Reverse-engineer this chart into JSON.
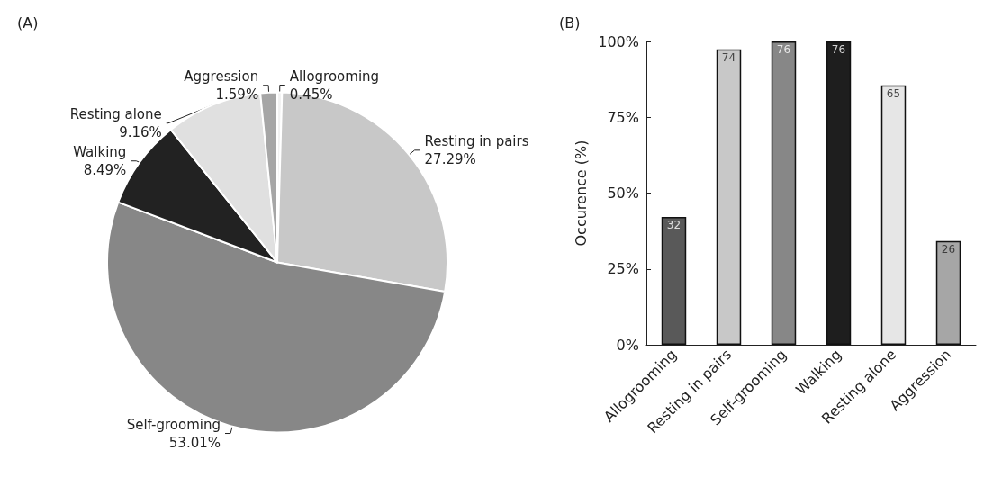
{
  "chart_data": [
    {
      "type": "pie",
      "title": "(A)",
      "categories": [
        "Allogrooming",
        "Resting in pairs",
        "Self-grooming",
        "Walking",
        "Resting alone",
        "Aggression"
      ],
      "values": [
        0.45,
        27.29,
        53.01,
        8.49,
        9.16,
        1.59
      ],
      "value_labels": [
        "0.45%",
        "27.29%",
        "53.01%",
        "8.49%",
        "9.16%",
        "1.59%"
      ],
      "colors": [
        "#f2f2f2",
        "#c8c8c8",
        "#878787",
        "#222222",
        "#e0e0e0",
        "#a6a6a6"
      ],
      "legend": false
    },
    {
      "type": "bar",
      "title": "(B)",
      "ylabel": "Occurence (%)",
      "categories": [
        "Allogrooming",
        "Resting in pairs",
        "Self-grooming",
        "Walking",
        "Resting alone",
        "Aggression"
      ],
      "values": [
        42.1,
        97.4,
        100,
        100,
        85.5,
        34.2
      ],
      "annotations": [
        {
          "text": "32",
          "x": "Allogrooming",
          "y": 42.1
        },
        {
          "text": "74",
          "x": "Resting in pairs",
          "y": 97.4
        },
        {
          "text": "76",
          "x": "Self-grooming",
          "y": 100
        },
        {
          "text": "76",
          "x": "Walking",
          "y": 100
        },
        {
          "text": "65",
          "x": "Resting alone",
          "y": 85.5
        },
        {
          "text": "26",
          "x": "Aggression",
          "y": 34.2
        }
      ],
      "colors": [
        "#595959",
        "#c8c8c8",
        "#878787",
        "#1e1e1e",
        "#e6e6e6",
        "#a6a6a6"
      ],
      "ylim": [
        0,
        100
      ],
      "yticks": [
        {
          "value": 0,
          "label": "0%"
        },
        {
          "value": 25,
          "label": "25%"
        },
        {
          "value": 50,
          "label": "50%"
        },
        {
          "value": 75,
          "label": "75%"
        },
        {
          "value": 100,
          "label": "100%"
        }
      ],
      "grid": false,
      "legend": false
    }
  ]
}
